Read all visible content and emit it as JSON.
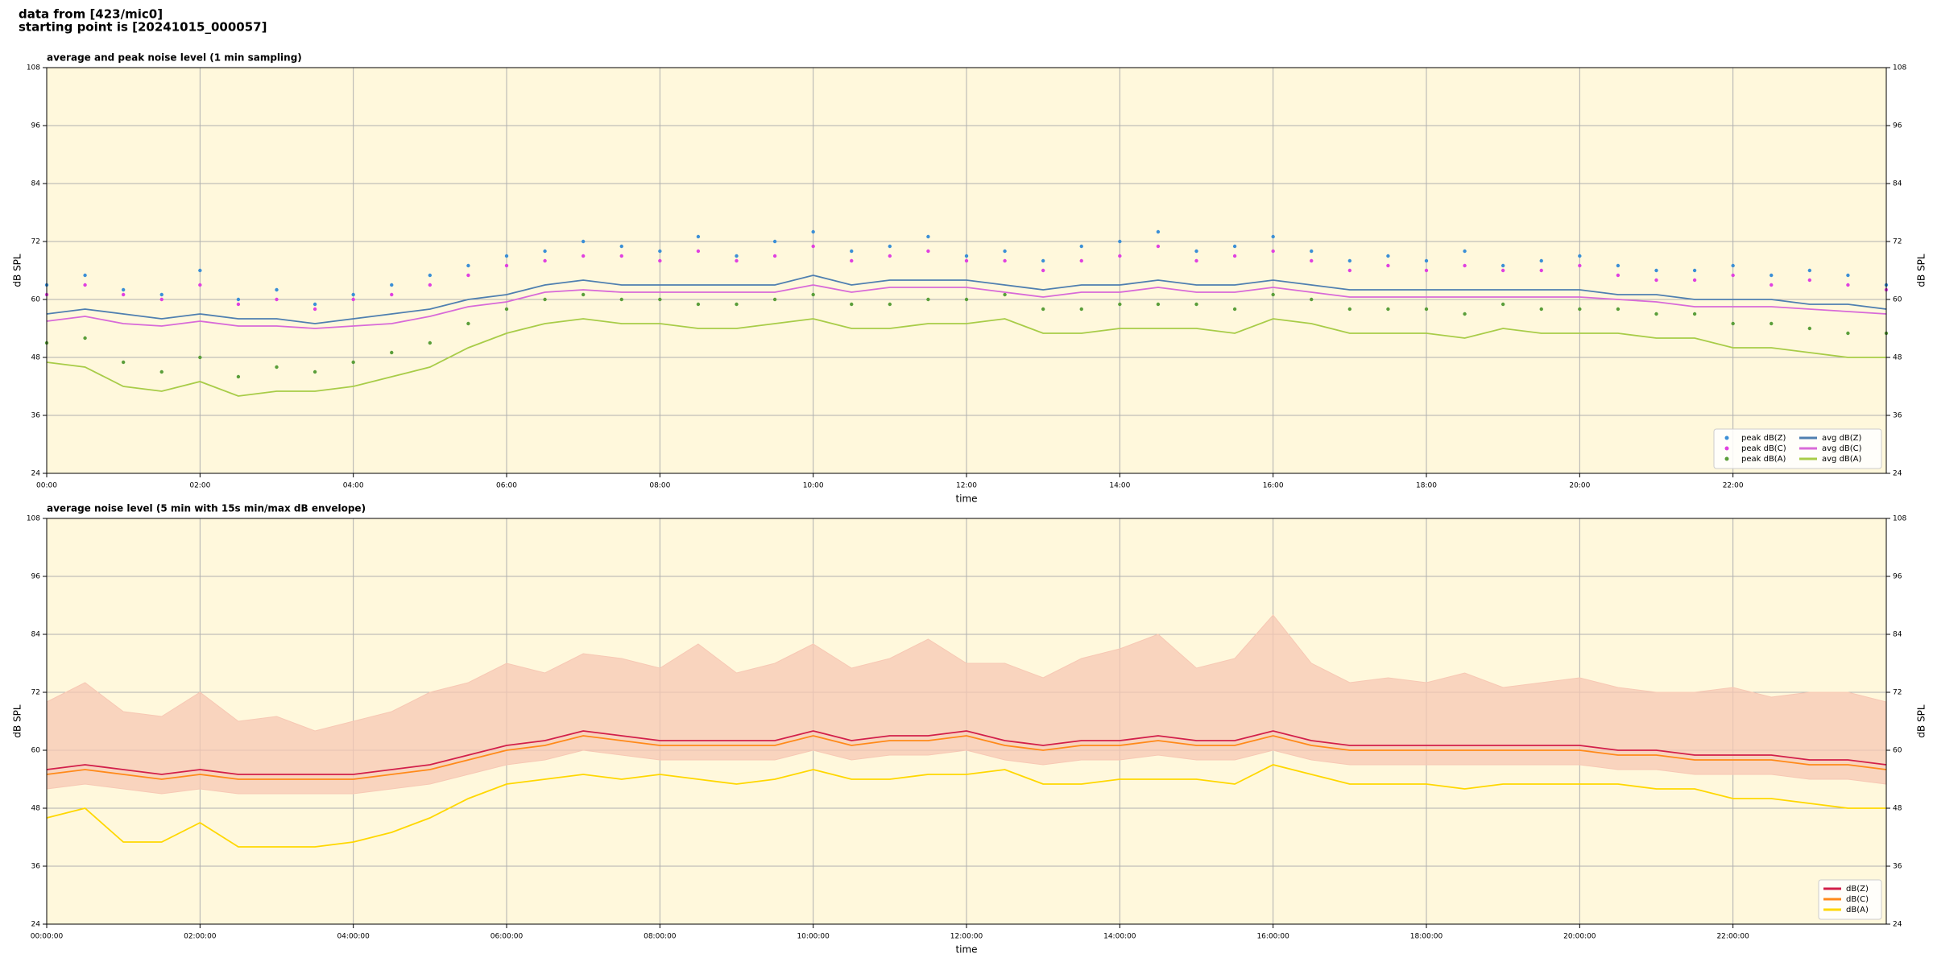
{
  "header": {
    "lines": [
      "data from [423/mic0]",
      "starting point is [20241015_000057]"
    ]
  },
  "chart_data": [
    {
      "type": "line",
      "title": "average and peak noise level (1 min sampling)",
      "xlabel": "time",
      "ylabel": "dB SPL",
      "xlim": [
        0,
        24
      ],
      "ylim": [
        24,
        108
      ],
      "yticks": [
        24,
        36,
        48,
        60,
        72,
        84,
        96,
        108
      ],
      "xticks": [
        {
          "value": 0,
          "label": "00:00"
        },
        {
          "value": 2,
          "label": "02:00"
        },
        {
          "value": 4,
          "label": "04:00"
        },
        {
          "value": 6,
          "label": "06:00"
        },
        {
          "value": 8,
          "label": "08:00"
        },
        {
          "value": 10,
          "label": "10:00"
        },
        {
          "value": 12,
          "label": "12:00"
        },
        {
          "value": 14,
          "label": "14:00"
        },
        {
          "value": 16,
          "label": "16:00"
        },
        {
          "value": 18,
          "label": "18:00"
        },
        {
          "value": 20,
          "label": "20:00"
        },
        {
          "value": 22,
          "label": "22:00"
        }
      ],
      "grid": true,
      "legend": "lower right",
      "x": [
        0,
        0.5,
        1,
        1.5,
        2,
        2.5,
        3,
        3.5,
        4,
        4.5,
        5,
        5.5,
        6,
        6.5,
        7,
        7.5,
        8,
        8.5,
        9,
        9.5,
        10,
        10.5,
        11,
        11.5,
        12,
        12.5,
        13,
        13.5,
        14,
        14.5,
        15,
        15.5,
        16,
        16.5,
        17,
        17.5,
        18,
        18.5,
        19,
        19.5,
        20,
        20.5,
        21,
        21.5,
        22,
        22.5,
        23,
        23.5,
        24
      ],
      "series": [
        {
          "name": "peak dB(Z)",
          "color": "#3b8fd6",
          "style": "points",
          "values": [
            63,
            65,
            62,
            61,
            66,
            60,
            62,
            59,
            61,
            63,
            65,
            67,
            69,
            70,
            72,
            71,
            70,
            73,
            69,
            72,
            74,
            70,
            71,
            73,
            69,
            70,
            68,
            71,
            72,
            74,
            70,
            71,
            73,
            70,
            68,
            69,
            68,
            70,
            67,
            68,
            69,
            67,
            66,
            66,
            67,
            65,
            66,
            65,
            63
          ]
        },
        {
          "name": "peak dB(C)",
          "color": "#e040e0",
          "style": "points",
          "values": [
            61,
            63,
            61,
            60,
            63,
            59,
            60,
            58,
            60,
            61,
            63,
            65,
            67,
            68,
            69,
            69,
            68,
            70,
            68,
            69,
            71,
            68,
            69,
            70,
            68,
            68,
            66,
            68,
            69,
            71,
            68,
            69,
            70,
            68,
            66,
            67,
            66,
            67,
            66,
            66,
            67,
            65,
            64,
            64,
            65,
            63,
            64,
            63,
            62
          ]
        },
        {
          "name": "peak dB(A)",
          "color": "#5a9e3a",
          "style": "points",
          "values": [
            51,
            52,
            47,
            45,
            48,
            44,
            46,
            45,
            47,
            49,
            51,
            55,
            58,
            60,
            61,
            60,
            60,
            59,
            59,
            60,
            61,
            59,
            59,
            60,
            60,
            61,
            58,
            58,
            59,
            59,
            59,
            58,
            61,
            60,
            58,
            58,
            58,
            57,
            59,
            58,
            58,
            58,
            57,
            57,
            55,
            55,
            54,
            53,
            53
          ]
        },
        {
          "name": "avg dB(Z)",
          "color": "#4f7fb0",
          "style": "line",
          "values": [
            57,
            58,
            57,
            56,
            57,
            56,
            56,
            55,
            56,
            57,
            58,
            60,
            61,
            63,
            64,
            63,
            63,
            63,
            63,
            63,
            65,
            63,
            64,
            64,
            64,
            63,
            62,
            63,
            63,
            64,
            63,
            63,
            64,
            63,
            62,
            62,
            62,
            62,
            62,
            62,
            62,
            61,
            61,
            60,
            60,
            60,
            59,
            59,
            58
          ]
        },
        {
          "name": "avg dB(C)",
          "color": "#d86ad8",
          "style": "line",
          "values": [
            55.5,
            56.5,
            55,
            54.5,
            55.5,
            54.5,
            54.5,
            54,
            54.5,
            55,
            56.5,
            58.5,
            59.5,
            61.5,
            62,
            61.5,
            61.5,
            61.5,
            61.5,
            61.5,
            63,
            61.5,
            62.5,
            62.5,
            62.5,
            61.5,
            60.5,
            61.5,
            61.5,
            62.5,
            61.5,
            61.5,
            62.5,
            61.5,
            60.5,
            60.5,
            60.5,
            60.5,
            60.5,
            60.5,
            60.5,
            60,
            59.5,
            58.5,
            58.5,
            58.5,
            58,
            57.5,
            57
          ]
        },
        {
          "name": "avg dB(A)",
          "color": "#a8cc48",
          "style": "line",
          "values": [
            47,
            46,
            42,
            41,
            43,
            40,
            41,
            41,
            42,
            44,
            46,
            50,
            53,
            55,
            56,
            55,
            55,
            54,
            54,
            55,
            56,
            54,
            54,
            55,
            55,
            56,
            53,
            53,
            54,
            54,
            54,
            53,
            56,
            55,
            53,
            53,
            53,
            52,
            54,
            53,
            53,
            53,
            52,
            52,
            50,
            50,
            49,
            48,
            48
          ]
        }
      ]
    },
    {
      "type": "line",
      "title": "average noise level (5 min with 15s min/max dB envelope)",
      "xlabel": "time",
      "ylabel": "dB SPL",
      "xlim": [
        0,
        24
      ],
      "ylim": [
        24,
        108
      ],
      "yticks": [
        24,
        36,
        48,
        60,
        72,
        84,
        96,
        108
      ],
      "xticks": [
        {
          "value": 0,
          "label": "00:00:00"
        },
        {
          "value": 2,
          "label": "02:00:00"
        },
        {
          "value": 4,
          "label": "04:00:00"
        },
        {
          "value": 6,
          "label": "06:00:00"
        },
        {
          "value": 8,
          "label": "08:00:00"
        },
        {
          "value": 10,
          "label": "10:00:00"
        },
        {
          "value": 12,
          "label": "12:00:00"
        },
        {
          "value": 14,
          "label": "14:00:00"
        },
        {
          "value": 16,
          "label": "16:00:00"
        },
        {
          "value": 18,
          "label": "18:00:00"
        },
        {
          "value": 20,
          "label": "20:00:00"
        },
        {
          "value": 22,
          "label": "22:00:00"
        }
      ],
      "grid": true,
      "legend": "lower right",
      "x": [
        0,
        0.5,
        1,
        1.5,
        2,
        2.5,
        3,
        3.5,
        4,
        4.5,
        5,
        5.5,
        6,
        6.5,
        7,
        7.5,
        8,
        8.5,
        9,
        9.5,
        10,
        10.5,
        11,
        11.5,
        12,
        12.5,
        13,
        13.5,
        14,
        14.5,
        15,
        15.5,
        16,
        16.5,
        17,
        17.5,
        18,
        18.5,
        19,
        19.5,
        20,
        20.5,
        21,
        21.5,
        22,
        22.5,
        23,
        23.5,
        24
      ],
      "envelope": {
        "color": "#f7c8b4",
        "lower": [
          52,
          53,
          52,
          51,
          52,
          51,
          51,
          51,
          51,
          52,
          53,
          55,
          57,
          58,
          60,
          59,
          58,
          58,
          58,
          58,
          60,
          58,
          59,
          59,
          60,
          58,
          57,
          58,
          58,
          59,
          58,
          58,
          60,
          58,
          57,
          57,
          57,
          57,
          57,
          57,
          57,
          56,
          56,
          55,
          55,
          55,
          54,
          54,
          53
        ],
        "upper": [
          70,
          74,
          68,
          67,
          72,
          66,
          67,
          64,
          66,
          68,
          72,
          74,
          78,
          76,
          80,
          79,
          77,
          82,
          76,
          78,
          82,
          77,
          79,
          83,
          78,
          78,
          75,
          79,
          81,
          84,
          77,
          79,
          88,
          78,
          74,
          75,
          74,
          76,
          73,
          74,
          75,
          73,
          72,
          72,
          73,
          71,
          72,
          72,
          70
        ]
      },
      "series": [
        {
          "name": "dB(Z)",
          "color": "#d21f4a",
          "style": "line",
          "values": [
            56,
            57,
            56,
            55,
            56,
            55,
            55,
            55,
            55,
            56,
            57,
            59,
            61,
            62,
            64,
            63,
            62,
            62,
            62,
            62,
            64,
            62,
            63,
            63,
            64,
            62,
            61,
            62,
            62,
            63,
            62,
            62,
            64,
            62,
            61,
            61,
            61,
            61,
            61,
            61,
            61,
            60,
            60,
            59,
            59,
            59,
            58,
            58,
            57
          ]
        },
        {
          "name": "dB(C)",
          "color": "#ff8a1a",
          "style": "line",
          "values": [
            55,
            56,
            55,
            54,
            55,
            54,
            54,
            54,
            54,
            55,
            56,
            58,
            60,
            61,
            63,
            62,
            61,
            61,
            61,
            61,
            63,
            61,
            62,
            62,
            63,
            61,
            60,
            61,
            61,
            62,
            61,
            61,
            63,
            61,
            60,
            60,
            60,
            60,
            60,
            60,
            60,
            59,
            59,
            58,
            58,
            58,
            57,
            57,
            56
          ]
        },
        {
          "name": "dB(A)",
          "color": "#ffd700",
          "style": "line",
          "values": [
            46,
            48,
            41,
            41,
            45,
            40,
            40,
            40,
            41,
            43,
            46,
            50,
            53,
            54,
            55,
            54,
            55,
            54,
            53,
            54,
            56,
            54,
            54,
            55,
            55,
            56,
            53,
            53,
            54,
            54,
            54,
            53,
            57,
            55,
            53,
            53,
            53,
            52,
            53,
            53,
            53,
            53,
            52,
            52,
            50,
            50,
            49,
            48,
            48
          ]
        }
      ]
    }
  ]
}
